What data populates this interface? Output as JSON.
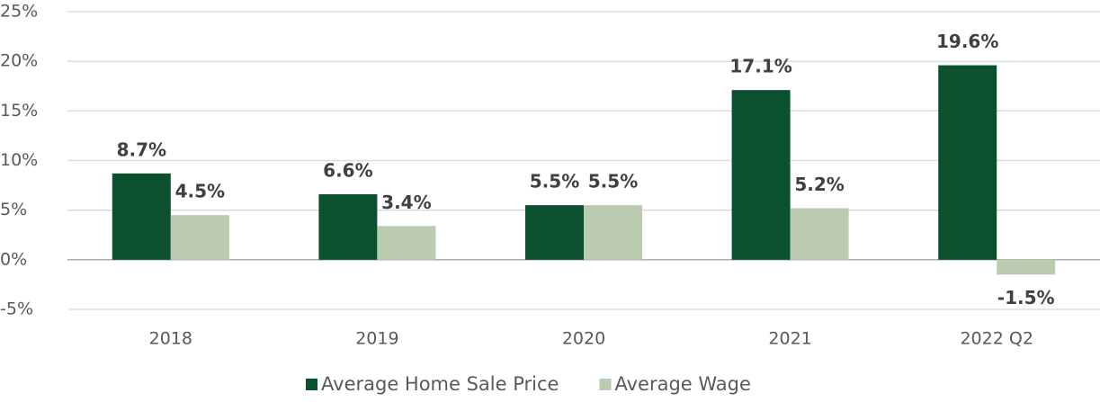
{
  "chart_data": {
    "type": "bar",
    "categories": [
      "2018",
      "2019",
      "2020",
      "2021",
      "2022 Q2"
    ],
    "series": [
      {
        "name": "Average Home Sale Price",
        "color": "#0b5130",
        "values": [
          8.7,
          6.6,
          5.5,
          17.1,
          19.6
        ],
        "value_labels": [
          "8.7%",
          "6.6%",
          "5.5%",
          "17.1%",
          "19.6%"
        ]
      },
      {
        "name": "Average Wage",
        "color": "#bacbb0",
        "values": [
          4.5,
          3.4,
          5.5,
          5.2,
          -1.5
        ],
        "value_labels": [
          "4.5%",
          "3.4%",
          "5.5%",
          "5.2%",
          "-1.5%"
        ]
      }
    ],
    "ylim": [
      -5,
      25
    ],
    "yticks": [
      {
        "value": -5,
        "label": "-5%"
      },
      {
        "value": 0,
        "label": "0%"
      },
      {
        "value": 5,
        "label": "5%"
      },
      {
        "value": 10,
        "label": "10%"
      },
      {
        "value": 15,
        "label": "15%"
      },
      {
        "value": 20,
        "label": "20%"
      },
      {
        "value": 25,
        "label": "25%"
      }
    ],
    "grid": true,
    "legend": "bottom"
  }
}
